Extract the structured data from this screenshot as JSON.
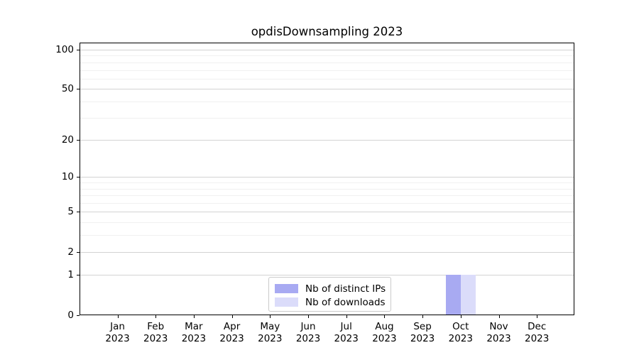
{
  "chart_data": {
    "type": "bar",
    "title": "opdisDownsampling 2023",
    "categories": [
      "Jan",
      "Feb",
      "Mar",
      "Apr",
      "May",
      "Jun",
      "Jul",
      "Aug",
      "Sep",
      "Oct",
      "Nov",
      "Dec"
    ],
    "years": [
      "2023",
      "2023",
      "2023",
      "2023",
      "2023",
      "2023",
      "2023",
      "2023",
      "2023",
      "2023",
      "2023",
      "2023"
    ],
    "series": [
      {
        "name": "Nb of distinct IPs",
        "color": "#a8aaf2",
        "values": [
          0,
          0,
          0,
          0,
          0,
          0,
          0,
          0,
          0,
          1,
          0,
          0
        ]
      },
      {
        "name": "Nb of downloads",
        "color": "#dbdcfa",
        "values": [
          0,
          0,
          0,
          0,
          0,
          0,
          0,
          0,
          0,
          1,
          0,
          0
        ]
      }
    ],
    "y_axis": {
      "scale": "log1p",
      "major_ticks": [
        0,
        1,
        2,
        5,
        10,
        20,
        50,
        100
      ],
      "minor_ticks": [
        3,
        4,
        6,
        7,
        8,
        9,
        30,
        40,
        60,
        70,
        80,
        90
      ],
      "ylim": [
        0,
        113
      ]
    },
    "xlabel": "",
    "ylabel": "",
    "grid": "horizontal",
    "legend_position": "bottom-center"
  },
  "colors": {
    "major_grid": "#d3d3d3",
    "minor_grid": "#f0f0f0",
    "spine": "#000000",
    "background": "#ffffff"
  }
}
